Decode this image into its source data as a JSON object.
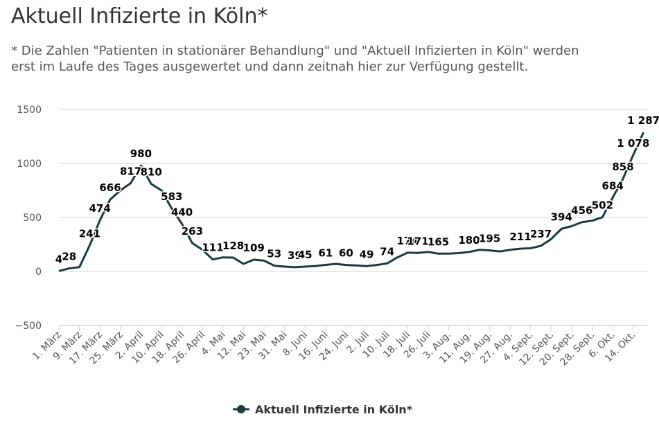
{
  "chart_data": {
    "type": "line",
    "title": "Aktuell Infizierte in Köln*",
    "subtitle": "* Die Zahlen \"Patienten in stationärer Behandlung\" und \"Aktuell Infizierten in Köln\" werden erst im Laufe des Tages ausgewertet und dann zeitnah hier zur Verfügung gestellt.",
    "categories": [
      "1. März",
      null,
      "9. März",
      null,
      "17. März",
      null,
      "25. März",
      null,
      "2. April",
      null,
      "10. April",
      null,
      "18. April",
      null,
      "26. April",
      null,
      "4. Mai",
      null,
      "12. Mai",
      null,
      "23. Mai",
      null,
      "31. Mai",
      null,
      "8. Juni",
      null,
      "16. Juni",
      null,
      "24. Juni",
      null,
      "2. Juli",
      null,
      "10. Juli",
      null,
      "18. Juli",
      null,
      "26. Juli",
      null,
      "3. Aug.",
      null,
      "11. Aug.",
      null,
      "19. Aug.",
      null,
      "27. Aug.",
      null,
      "4. Sept.",
      null,
      "12. Sept.",
      null,
      "20. Sept.",
      null,
      "28. Sept.",
      null,
      "6. Okt.",
      null,
      "14. Okt.",
      null
    ],
    "series": [
      {
        "name": "Aktuell Infizierte in Köln*",
        "color": "#1b3a3c",
        "values": [
          4,
          28,
          40,
          241,
          474,
          666,
          750,
          817,
          980,
          810,
          750,
          583,
          440,
          263,
          200,
          111,
          130,
          128,
          70,
          109,
          100,
          53,
          45,
          39,
          45,
          50,
          61,
          70,
          60,
          55,
          49,
          60,
          74,
          130,
          174,
          171,
          180,
          165,
          165,
          170,
          180,
          200,
          195,
          185,
          200,
          211,
          215,
          237,
          300,
          394,
          420,
          456,
          470,
          502,
          684,
          858,
          1078,
          1287
        ],
        "value_labels": [
          "4",
          "28",
          null,
          "241",
          "474",
          "666",
          null,
          "817",
          "980",
          "810",
          null,
          "583",
          "440",
          "263",
          null,
          "111",
          null,
          "128",
          null,
          "109",
          null,
          "53",
          null,
          "39",
          "45",
          null,
          "61",
          null,
          "60",
          null,
          "49",
          null,
          "74",
          null,
          "174",
          "171",
          null,
          "165",
          null,
          null,
          "180",
          null,
          "195",
          null,
          null,
          "211",
          null,
          "237",
          null,
          "394",
          null,
          "456",
          null,
          "502",
          "684",
          "858",
          "1 078",
          "1 287"
        ]
      }
    ],
    "ylim": [
      -500,
      1500
    ],
    "yticks": [
      {
        "value": -500,
        "label": "−500"
      },
      0,
      500,
      1000,
      1500
    ],
    "grid": true,
    "legend": "bottom"
  }
}
